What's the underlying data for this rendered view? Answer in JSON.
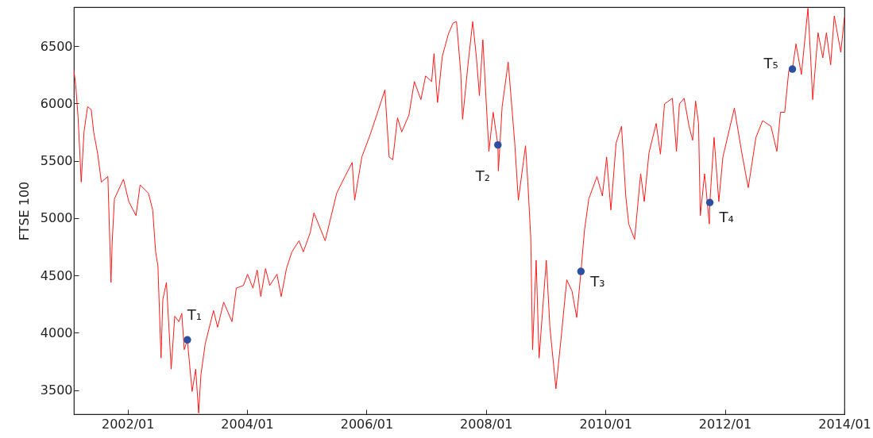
{
  "chart_data": {
    "type": "line",
    "ylabel": "FTSE 100",
    "xlim": [
      "2001-02-06",
      "2014-01-01"
    ],
    "ylim": [
      3290,
      6840
    ],
    "yticks": [
      3500,
      4000,
      4500,
      5000,
      5500,
      6000,
      6500
    ],
    "xticks": [
      {
        "value": "2002-01-01",
        "label": "2002/01"
      },
      {
        "value": "2004-01-01",
        "label": "2004/01"
      },
      {
        "value": "2006-01-01",
        "label": "2006/01"
      },
      {
        "value": "2008-01-01",
        "label": "2008/01"
      },
      {
        "value": "2010-01-01",
        "label": "2010/01"
      },
      {
        "value": "2012-01-01",
        "label": "2012/01"
      },
      {
        "value": "2014-01-01",
        "label": "2014/01"
      }
    ],
    "grid": false,
    "series": [
      {
        "type": "line",
        "color": "#ff1a1a",
        "marker": "none",
        "line_style": "solid",
        "x": [
          "2001-02-06",
          "2001-02-17",
          "2001-03-04",
          "2001-03-23",
          "2001-04-09",
          "2001-05-01",
          "2001-05-23",
          "2001-06-07",
          "2001-07-02",
          "2001-07-24",
          "2001-09-02",
          "2001-09-21",
          "2001-09-28",
          "2001-10-12",
          "2001-12-06",
          "2002-01-08",
          "2002-02-21",
          "2002-03-18",
          "2002-05-08",
          "2002-06-03",
          "2002-06-21",
          "2002-07-05",
          "2002-07-24",
          "2002-08-04",
          "2002-08-26",
          "2002-09-13",
          "2002-09-24",
          "2002-10-16",
          "2002-11-10",
          "2002-11-28",
          "2002-12-13",
          "2003-01-01",
          "2003-01-30",
          "2003-02-21",
          "2003-03-11",
          "2003-03-25",
          "2003-04-20",
          "2003-06-10",
          "2003-07-05",
          "2003-08-11",
          "2003-10-01",
          "2003-10-27",
          "2003-12-10",
          "2004-01-04",
          "2004-02-06",
          "2004-03-03",
          "2004-03-25",
          "2004-04-23",
          "2004-05-19",
          "2004-07-02",
          "2004-07-28",
          "2004-08-29",
          "2004-10-01",
          "2004-11-14",
          "2004-12-10",
          "2005-01-22",
          "2005-02-13",
          "2005-04-23",
          "2005-07-02",
          "2005-08-22",
          "2005-10-05",
          "2005-10-20",
          "2005-12-03",
          "2006-01-23",
          "2006-03-15",
          "2006-04-23",
          "2006-05-19",
          "2006-06-10",
          "2006-07-09",
          "2006-08-04",
          "2006-09-17",
          "2006-10-20",
          "2006-11-29",
          "2006-12-28",
          "2007-02-03",
          "2007-02-17",
          "2007-03-11",
          "2007-04-09",
          "2007-05-16",
          "2007-06-14",
          "2007-07-05",
          "2007-07-31",
          "2007-08-11",
          "2007-09-13",
          "2007-10-12",
          "2007-11-03",
          "2007-11-22",
          "2007-12-13",
          "2008-01-19",
          "2008-02-14",
          "2008-03-14",
          "2008-03-17",
          "2008-04-09",
          "2008-05-16",
          "2008-06-03",
          "2008-06-25",
          "2008-07-17",
          "2008-08-30",
          "2008-09-13",
          "2008-10-01",
          "2008-10-12",
          "2008-11-03",
          "2008-11-21",
          "2009-01-04",
          "2009-01-26",
          "2009-03-04",
          "2009-04-06",
          "2009-05-09",
          "2009-06-10",
          "2009-07-09",
          "2009-08-04",
          "2009-08-26",
          "2009-09-21",
          "2009-10-16",
          "2009-11-10",
          "2009-12-13",
          "2010-01-08",
          "2010-02-03",
          "2010-03-07",
          "2010-04-09",
          "2010-05-05",
          "2010-05-23",
          "2010-06-28",
          "2010-08-04",
          "2010-08-26",
          "2010-09-24",
          "2010-11-07",
          "2010-12-03",
          "2010-12-28",
          "2011-02-14",
          "2011-03-11",
          "2011-03-29",
          "2011-04-27",
          "2011-05-27",
          "2011-06-18",
          "2011-07-06",
          "2011-07-24",
          "2011-08-04",
          "2011-08-30",
          "2011-09-28",
          "2011-10-01",
          "2011-10-27",
          "2011-11-25",
          "2011-12-20",
          "2012-02-28",
          "2012-04-12",
          "2012-05-23",
          "2012-07-09",
          "2012-08-19",
          "2012-10-09",
          "2012-11-14",
          "2012-12-06",
          "2013-01-01",
          "2013-01-26",
          "2013-02-17",
          "2013-03-11",
          "2013-04-13",
          "2013-05-23",
          "2013-06-10",
          "2013-06-21",
          "2013-07-24",
          "2013-08-22",
          "2013-09-13",
          "2013-10-09",
          "2013-10-31",
          "2013-12-10",
          "2014-01-01"
        ],
        "values": [
          6288,
          6167,
          5874,
          5314,
          5752,
          5972,
          5947,
          5752,
          5558,
          5314,
          5363,
          4438,
          4779,
          5168,
          5339,
          5144,
          5022,
          5290,
          5217,
          5071,
          4705,
          4584,
          3780,
          4291,
          4438,
          3975,
          3683,
          4145,
          4097,
          4170,
          3853,
          3938,
          3488,
          3683,
          3300,
          3634,
          3902,
          4194,
          4048,
          4267,
          4097,
          4389,
          4413,
          4511,
          4389,
          4547,
          4316,
          4560,
          4413,
          4511,
          4316,
          4560,
          4705,
          4803,
          4705,
          4876,
          5046,
          4803,
          5217,
          5363,
          5485,
          5156,
          5533,
          5728,
          5947,
          6118,
          5533,
          5509,
          5874,
          5752,
          5899,
          6191,
          6033,
          6240,
          6191,
          6434,
          6008,
          6410,
          6605,
          6702,
          6714,
          6264,
          5862,
          6337,
          6714,
          6410,
          6069,
          6556,
          5582,
          5923,
          5638,
          5411,
          5972,
          6361,
          6045,
          5655,
          5156,
          5631,
          5314,
          4827,
          3853,
          4633,
          3780,
          4633,
          4048,
          3512,
          3975,
          4462,
          4365,
          4133,
          4535,
          4900,
          5168,
          5265,
          5363,
          5193,
          5533,
          5071,
          5655,
          5801,
          5193,
          4949,
          4815,
          5387,
          5144,
          5570,
          5826,
          5558,
          5996,
          6045,
          5582,
          5996,
          6045,
          5801,
          5679,
          6021,
          5826,
          5022,
          5387,
          4949,
          5136,
          5704,
          5144,
          5533,
          5959,
          5582,
          5265,
          5704,
          5850,
          5801,
          5582,
          5923,
          5923,
          6288,
          6300,
          6519,
          6252,
          6830,
          6361,
          6033,
          6617,
          6398,
          6617,
          6337,
          6763,
          6446,
          6751
        ]
      },
      {
        "type": "scatter",
        "color": "#2e4fa0",
        "marker": "circle",
        "x": [
          "2003-01-01",
          "2008-03-14",
          "2009-08-04",
          "2011-10-01",
          "2013-02-17"
        ],
        "values": [
          3938,
          5638,
          4535,
          5136,
          6300
        ]
      }
    ],
    "annotations": [
      {
        "text": "T₁",
        "x": "2003-01-01",
        "y": 3938
      },
      {
        "text": "T₂",
        "x": "2008-03-14",
        "y": 5638
      },
      {
        "text": "T₃",
        "x": "2009-08-04",
        "y": 4535
      },
      {
        "text": "T₄",
        "x": "2011-10-01",
        "y": 5136
      },
      {
        "text": "T₅",
        "x": "2013-02-17",
        "y": 6300
      }
    ]
  }
}
